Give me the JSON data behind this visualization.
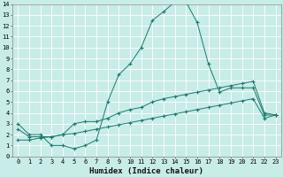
{
  "title": "",
  "xlabel": "Humidex (Indice chaleur)",
  "ylabel": "",
  "bg_color": "#c8ece8",
  "grid_color": "#ffffff",
  "line_color": "#1a7a6e",
  "xlim": [
    -0.5,
    23.5
  ],
  "ylim": [
    0,
    14
  ],
  "xticks": [
    0,
    1,
    2,
    3,
    4,
    5,
    6,
    7,
    8,
    9,
    10,
    11,
    12,
    13,
    14,
    15,
    16,
    17,
    18,
    19,
    20,
    21,
    22,
    23
  ],
  "yticks": [
    0,
    1,
    2,
    3,
    4,
    5,
    6,
    7,
    8,
    9,
    10,
    11,
    12,
    13,
    14
  ],
  "curve1_x": [
    0,
    1,
    2,
    3,
    4,
    5,
    6,
    7,
    8,
    9,
    10,
    11,
    12,
    13,
    14,
    15,
    16,
    17,
    18,
    19,
    20,
    21,
    22,
    23
  ],
  "curve1_y": [
    3,
    2,
    2,
    1,
    1,
    0.7,
    1,
    1.5,
    5,
    7.5,
    8.5,
    10,
    12.5,
    13.3,
    14.2,
    14.2,
    12.3,
    8.5,
    5.9,
    6.3,
    6.3,
    6.3,
    3.8,
    3.8
  ],
  "curve2_x": [
    0,
    1,
    2,
    3,
    4,
    5,
    6,
    7,
    8,
    9,
    10,
    11,
    12,
    13,
    14,
    15,
    16,
    17,
    18,
    19,
    20,
    21,
    22,
    23
  ],
  "curve2_y": [
    2.5,
    1.8,
    1.8,
    1.8,
    2,
    3,
    3.2,
    3.2,
    3.5,
    4,
    4.3,
    4.5,
    5,
    5.3,
    5.5,
    5.7,
    5.9,
    6.1,
    6.3,
    6.5,
    6.7,
    6.9,
    4.0,
    3.8
  ],
  "curve3_x": [
    0,
    1,
    2,
    3,
    4,
    5,
    6,
    7,
    8,
    9,
    10,
    11,
    12,
    13,
    14,
    15,
    16,
    17,
    18,
    19,
    20,
    21,
    22,
    23
  ],
  "curve3_y": [
    1.5,
    1.5,
    1.7,
    1.8,
    2.0,
    2.1,
    2.3,
    2.5,
    2.7,
    2.9,
    3.1,
    3.3,
    3.5,
    3.7,
    3.9,
    4.1,
    4.3,
    4.5,
    4.7,
    4.9,
    5.1,
    5.3,
    3.5,
    3.8
  ],
  "marker": "+",
  "markersize": 3,
  "markeredgewidth": 0.8,
  "linewidth": 0.7,
  "xlabel_fontsize": 6.5,
  "tick_fontsize": 5,
  "fig_width": 3.2,
  "fig_height": 2.0,
  "dpi": 100
}
